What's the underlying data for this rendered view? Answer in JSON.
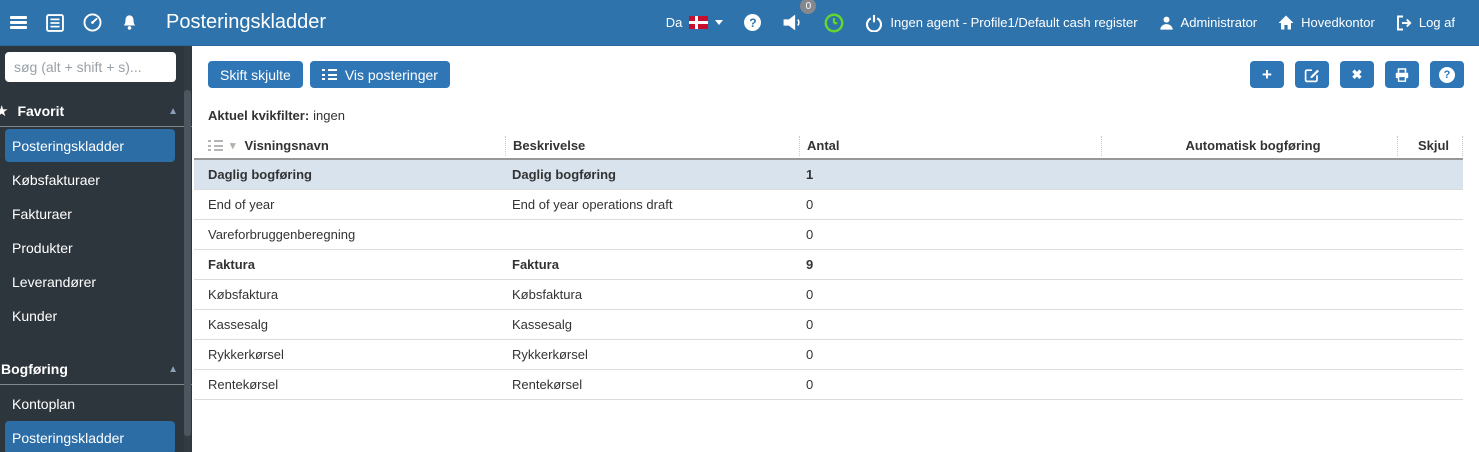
{
  "topbar": {
    "title": "Posteringskladder",
    "language_label": "Da",
    "notification_count": "0",
    "agent_status": "Ingen agent - Profile1/Default cash register",
    "user_name": "Administrator",
    "office_name": "Hovedkontor",
    "logout_label": "Log af"
  },
  "icons": {
    "star": "★",
    "chevron_up": "▲",
    "chevron_down": "▾",
    "plus": "+",
    "close": "✖",
    "help": "?"
  },
  "sidebar": {
    "search_placeholder": "søg (alt + shift + s)...",
    "sections": [
      {
        "label": "Favorit",
        "icon": "star-icon",
        "items": [
          {
            "label": "Posteringskladder",
            "selected": true
          },
          {
            "label": "Købsfakturaer",
            "selected": false
          },
          {
            "label": "Fakturaer",
            "selected": false
          },
          {
            "label": "Produkter",
            "selected": false
          },
          {
            "label": "Leverandører",
            "selected": false
          },
          {
            "label": "Kunder",
            "selected": false
          }
        ]
      },
      {
        "label": "Bogføring",
        "icon": null,
        "items": [
          {
            "label": "Kontoplan",
            "selected": false
          },
          {
            "label": "Posteringskladder",
            "selected": true
          }
        ]
      }
    ]
  },
  "toolbar": {
    "skift_skjulte_label": "Skift skjulte",
    "vis_posteringer_label": "Vis posteringer",
    "icon_buttons": [
      "add",
      "edit",
      "delete",
      "print",
      "help"
    ]
  },
  "quickfilter": {
    "label": "Aktuel kvikfilter:",
    "value": "ingen"
  },
  "table": {
    "columns": [
      "Visningsnavn",
      "Beskrivelse",
      "Antal",
      "Automatisk bogføring",
      "Skjul"
    ],
    "rows": [
      {
        "name": "Daglig bogføring",
        "description": "Daglig bogføring",
        "count": "1",
        "bold": true,
        "selected": true
      },
      {
        "name": "End of year",
        "description": "End of year operations draft",
        "count": "0",
        "bold": false,
        "selected": false
      },
      {
        "name": "Vareforbruggenberegning",
        "description": "",
        "count": "0",
        "bold": false,
        "selected": false
      },
      {
        "name": "Faktura",
        "description": "Faktura",
        "count": "9",
        "bold": true,
        "selected": false
      },
      {
        "name": "Købsfaktura",
        "description": "Købsfaktura",
        "count": "0",
        "bold": false,
        "selected": false
      },
      {
        "name": "Kassesalg",
        "description": "Kassesalg",
        "count": "0",
        "bold": false,
        "selected": false
      },
      {
        "name": "Rykkerkørsel",
        "description": "Rykkerkørsel",
        "count": "0",
        "bold": false,
        "selected": false
      },
      {
        "name": "Rentekørsel",
        "description": "Rentekørsel",
        "count": "0",
        "bold": false,
        "selected": false
      }
    ]
  },
  "colors": {
    "topbar_blue": "#2e73ab",
    "sidebar_dark": "#2e363d",
    "button_blue": "#2e76b6",
    "sidebar_selected_blue": "#2c6da6",
    "selected_row_blue": "#d8e3ee",
    "flag_red": "#c8102e",
    "clock_green": "#63d62f",
    "badge_grey": "#85888c"
  }
}
